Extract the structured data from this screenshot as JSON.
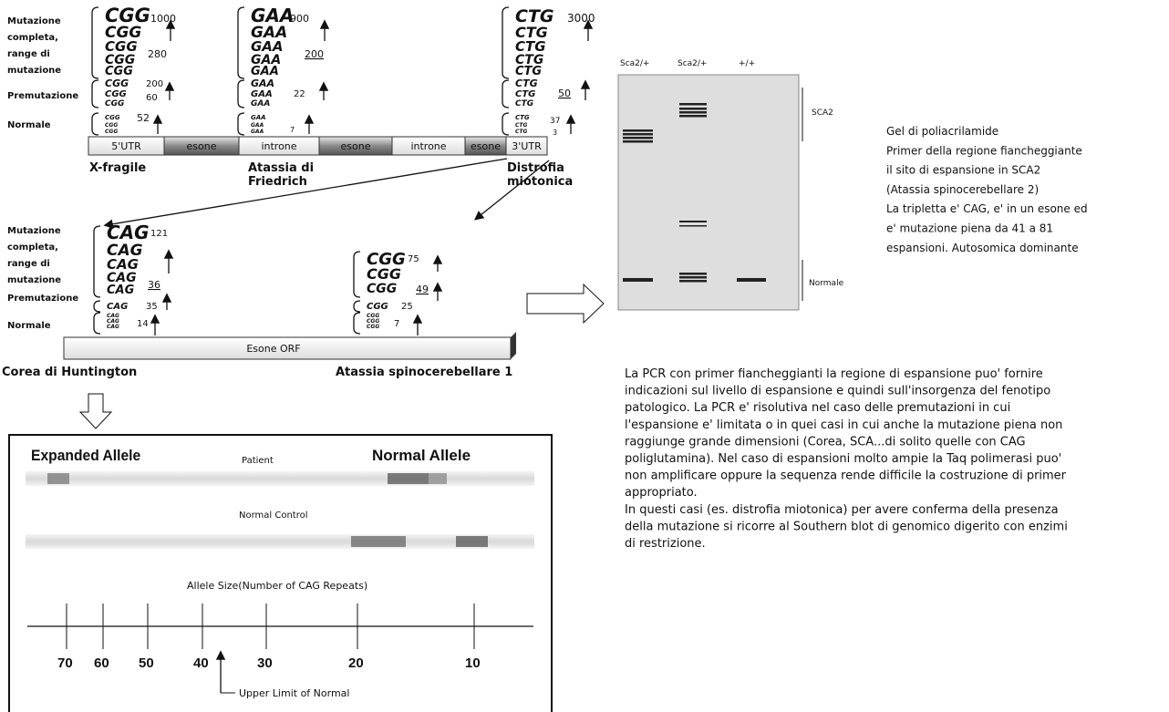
{
  "top_panel": {
    "row_labels": {
      "full": [
        "Mutazione",
        "completa,",
        "range di",
        "mutazione"
      ],
      "pre": "Premutazione",
      "normal": "Normale"
    },
    "repeats": [
      {
        "codon": "CGG",
        "full_max": 1000,
        "full_min": 280,
        "pre_max": 200,
        "pre_min": 60,
        "normal_max": 52
      },
      {
        "codon": "GAA",
        "full_max": 900,
        "full_min": 200,
        "pre_max": 22,
        "normal_max": 7
      },
      {
        "codon": "CTG",
        "full_max": 3000,
        "pre_max": 50,
        "normal_max": 37,
        "normal_min": 3
      }
    ],
    "gene_regions": [
      "5'UTR",
      "esone",
      "introne",
      "esone",
      "introne",
      "esone",
      "3'UTR"
    ],
    "diseases": [
      [
        "X-fragile"
      ],
      [
        "Atassia di",
        "Friedrich"
      ],
      [
        "Distrofia",
        "miotonica"
      ]
    ]
  },
  "middle_panel": {
    "row_labels": {
      "full": [
        "Mutazione",
        "completa,",
        "range di",
        "mutazione"
      ],
      "pre": "Premutazione",
      "normal": "Normale"
    },
    "repeats": [
      {
        "codon": "CAG",
        "full_max": 121,
        "full_min": 36,
        "pre_max": 35,
        "normal_max": 14
      },
      {
        "codon": "CGG",
        "full_max": 75,
        "full_min": 49,
        "pre_max": 25,
        "normal_max": 7
      }
    ],
    "exon_label": "Esone ORF",
    "diseases": [
      "Corea di Huntington",
      "Atassia spinocerebellare 1"
    ]
  },
  "gel": {
    "lanes": [
      "Sca2/+",
      "Sca2/+",
      "+/+"
    ],
    "side_labels": [
      "SCA2",
      "Normale"
    ],
    "caption": [
      "Gel di poliacrilamide",
      "Primer della regione fiancheggiante",
      "il sito di espansione in SCA2",
      "(Atassia spinocerebellare 2)",
      "La tripletta e' CAG, e' in un esone ed",
      "e' mutazione piena da 41 a 81",
      "espansioni. Autosomica dominante"
    ]
  },
  "paragraph": [
    "La PCR con primer fiancheggianti la regione di espansione puo' fornire",
    "indicazioni sul livello di espansione e quindi sull'insorgenza del fenotipo",
    "patologico. La PCR e' risolutiva nel caso delle premutazioni in cui",
    "l'espansione e' limitata o in quei casi in cui anche la mutazione piena non",
    "raggiunge grande dimensioni (Corea, SCA...di solito quelle con CAG",
    "poliglutamina). Nel caso di espansioni molto ampie la Taq polimerasi puo'",
    "non amplificare oppure la sequenza rende difficile la costruzione di primer",
    "appropriato.",
    "In questi casi (es. distrofia miotonica) per avere conferma della presenza",
    "della mutazione si ricorre al Southern blot di genomico digerito con enzimi",
    "di restrizione."
  ],
  "southern": {
    "expanded": "Expanded Allele",
    "patient": "Patient",
    "normal_allele": "Normal Allele",
    "control": "Normal Control",
    "axis_title": "Allele Size(Number of CAG Repeats)",
    "ticks": [
      70,
      60,
      50,
      40,
      30,
      20,
      10
    ],
    "upper_limit": "Upper Limit of Normal"
  }
}
